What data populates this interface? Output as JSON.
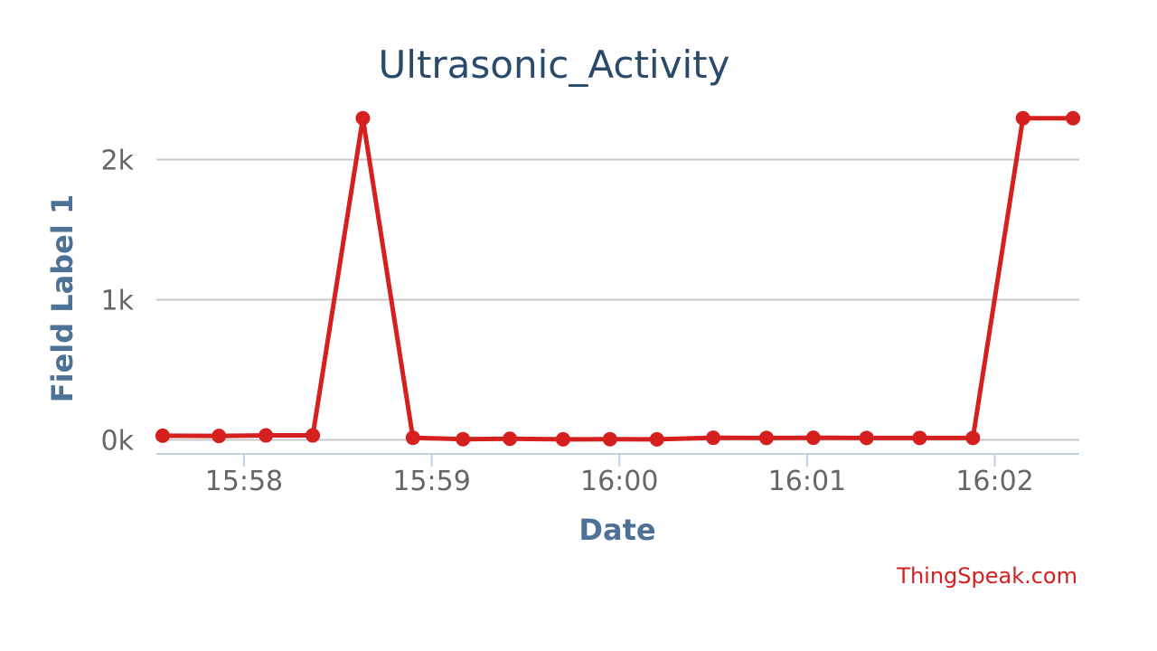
{
  "chart_data": {
    "type": "line",
    "title": "Ultrasonic_Activity",
    "xlabel": "Date",
    "ylabel": "Field Label 1",
    "xlim": [
      "15:57:32",
      "16:02:27"
    ],
    "ylim": [
      -100,
      2300
    ],
    "y_ticks": [
      0,
      1000,
      2000
    ],
    "y_tick_labels": [
      "0k",
      "1k",
      "2k"
    ],
    "x_ticks": [
      "15:58:00",
      "15:59:00",
      "16:00:00",
      "16:01:00",
      "16:02:00"
    ],
    "x_tick_labels": [
      "15:58",
      "15:59",
      "16:00",
      "16:01",
      "16:02"
    ],
    "grid": true,
    "color": "#d62020",
    "series": [
      {
        "x": [
          "15:57:34",
          "15:57:52",
          "15:58:07",
          "15:58:22",
          "15:58:38",
          "15:58:54",
          "15:59:10",
          "15:59:25",
          "15:59:42",
          "15:59:57",
          "16:00:12",
          "16:00:30",
          "16:00:47",
          "16:01:02",
          "16:01:19",
          "16:01:36",
          "16:01:53",
          "16:02:09",
          "16:02:25"
        ],
        "y": [
          30,
          28,
          32,
          32,
          2295,
          15,
          5,
          8,
          4,
          5,
          4,
          15,
          14,
          15,
          14,
          14,
          14,
          2295,
          2295
        ]
      }
    ]
  },
  "credit": "ThingSpeak.com"
}
